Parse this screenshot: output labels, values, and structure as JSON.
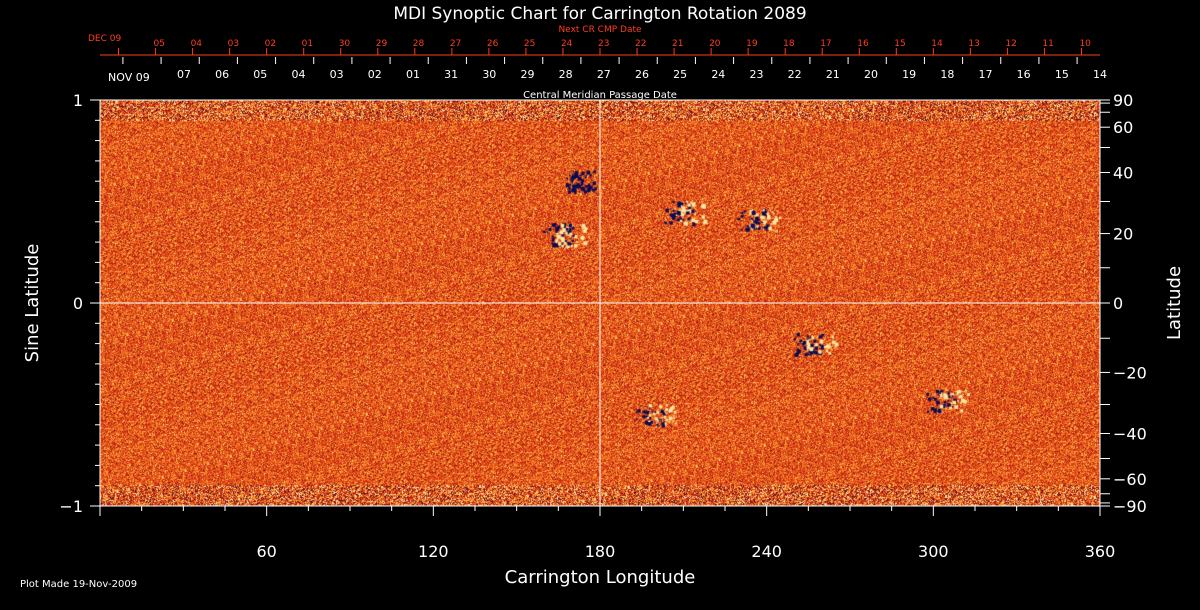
{
  "chart_data": {
    "type": "heatmap",
    "title": "MDI Synoptic Chart for Carrington Rotation 2089",
    "xlabel": "Carrington Longitude",
    "ylabel_left": "Sine Latitude",
    "ylabel_right": "Latitude",
    "xlim": [
      0,
      360
    ],
    "ylim": [
      -1,
      1
    ],
    "x_ticks": [
      60,
      120,
      180,
      240,
      300,
      360
    ],
    "y_ticks_left": [
      {
        "value": 1,
        "label": "1"
      },
      {
        "value": 0,
        "label": "0"
      },
      {
        "value": -1,
        "label": "−1"
      }
    ],
    "y_ticks_right": [
      {
        "deg": 90,
        "label": "90"
      },
      {
        "deg": 60,
        "label": "60"
      },
      {
        "deg": 40,
        "label": "40"
      },
      {
        "deg": 20,
        "label": "20"
      },
      {
        "deg": 0,
        "label": "0"
      },
      {
        "deg": -20,
        "label": "−20"
      },
      {
        "deg": -40,
        "label": "−40"
      },
      {
        "deg": -60,
        "label": "−60"
      },
      {
        "deg": -90,
        "label": "−90"
      }
    ],
    "grid_lines": {
      "longitude": 180,
      "sine_latitude": 0
    },
    "top_axis_next": {
      "caption": "Next CR CMP Date",
      "start_label": "DEC 09",
      "labels": [
        "05",
        "04",
        "03",
        "02",
        "01",
        "30",
        "29",
        "28",
        "27",
        "26",
        "25",
        "24",
        "23",
        "22",
        "21",
        "20",
        "19",
        "18",
        "17",
        "16",
        "15",
        "14",
        "13",
        "12",
        "11",
        "10"
      ],
      "color": "#ff3c1e"
    },
    "top_axis_cmp": {
      "caption": "Central Meridian Passage Date",
      "start_label": "NOV 09",
      "labels": [
        "07",
        "06",
        "05",
        "04",
        "03",
        "02",
        "01",
        "31",
        "30",
        "29",
        "28",
        "27",
        "26",
        "25",
        "24",
        "23",
        "22",
        "21",
        "20",
        "19",
        "18",
        "17",
        "16",
        "15",
        "14"
      ]
    },
    "active_regions": [
      {
        "lon": 167,
        "sinlat": 0.34,
        "polarity": "mixed"
      },
      {
        "lon": 175,
        "sinlat": 0.6,
        "polarity": "negative"
      },
      {
        "lon": 210,
        "sinlat": 0.45,
        "polarity": "mixed"
      },
      {
        "lon": 237,
        "sinlat": 0.41,
        "polarity": "mixed"
      },
      {
        "lon": 200,
        "sinlat": -0.55,
        "polarity": "mixed"
      },
      {
        "lon": 305,
        "sinlat": -0.48,
        "polarity": "mixed"
      },
      {
        "lon": 257,
        "sinlat": -0.2,
        "polarity": "mixed"
      }
    ],
    "colors": {
      "background": "#e8501a",
      "positive": "#ffe7a0",
      "negative": "#0a0a50",
      "axis": "#ffffff"
    }
  },
  "footer": "Plot Made 19-Nov-2009"
}
